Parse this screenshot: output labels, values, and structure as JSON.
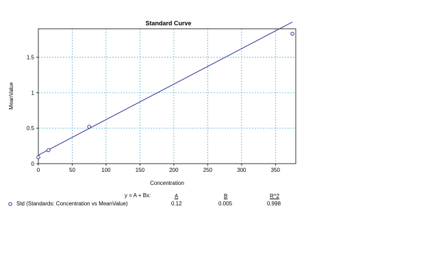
{
  "chart_data": {
    "type": "scatter",
    "title": "Standard Curve",
    "xlabel": "Concentration",
    "ylabel": "MeanValue",
    "xlim": [
      0,
      380
    ],
    "ylim": [
      0,
      1.9
    ],
    "xticks": [
      0,
      50,
      100,
      150,
      200,
      250,
      300,
      350
    ],
    "xtick_labels": [
      "0",
      "50",
      "100",
      "150",
      "200",
      "250",
      "300",
      "350"
    ],
    "yticks": [
      0,
      0.5,
      1,
      1.5
    ],
    "ytick_labels": [
      "0",
      "0.5",
      "1",
      "1.5"
    ],
    "grid": true,
    "series": [
      {
        "name": "Std (Standards: Concentration vs MeanValue)",
        "x": [
          0,
          15,
          75,
          375
        ],
        "y": [
          0.09,
          0.19,
          0.52,
          1.83
        ],
        "color": "#1f3f9f"
      }
    ],
    "fit": {
      "A": 0.12,
      "B": 0.005,
      "x_range": [
        0,
        375
      ],
      "color": "#2a2a8c"
    }
  },
  "legend": {
    "equation_label": "y = A + Bx:",
    "col_a_header": "A",
    "col_b_header": "B",
    "col_r2_header": "R^2",
    "series_label": "Std (Standards: Concentration vs MeanValue)",
    "val_a": "0.12",
    "val_b": "0.005",
    "val_r2": "0.998"
  }
}
